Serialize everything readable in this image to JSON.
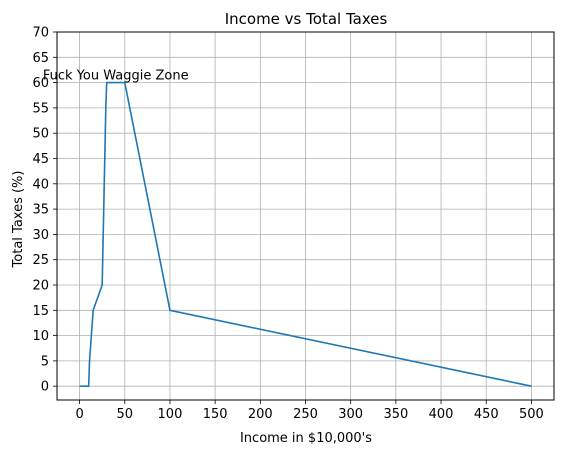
{
  "chart_data": {
    "type": "line",
    "title": "Income vs Total Taxes",
    "xlabel": "Income in $10,000's",
    "ylabel": "Total Taxes (%)",
    "xlim": [
      0,
      500
    ],
    "ylim": [
      0,
      70
    ],
    "xticks": [
      0,
      50,
      100,
      150,
      200,
      250,
      300,
      350,
      400,
      450,
      500
    ],
    "yticks": [
      0,
      5,
      10,
      15,
      20,
      25,
      30,
      35,
      40,
      45,
      50,
      55,
      60,
      65,
      70
    ],
    "grid": true,
    "series": [
      {
        "color": "#1f77b4",
        "x": [
          0,
          10,
          11,
          15,
          25,
          29,
          30,
          50,
          100,
          500
        ],
        "y": [
          0,
          0,
          5,
          15,
          20,
          55,
          60,
          60,
          15,
          0
        ]
      }
    ],
    "annotations": [
      {
        "text": "Fuck You Waggie Zone",
        "x": 40,
        "y": 61.5
      }
    ]
  }
}
